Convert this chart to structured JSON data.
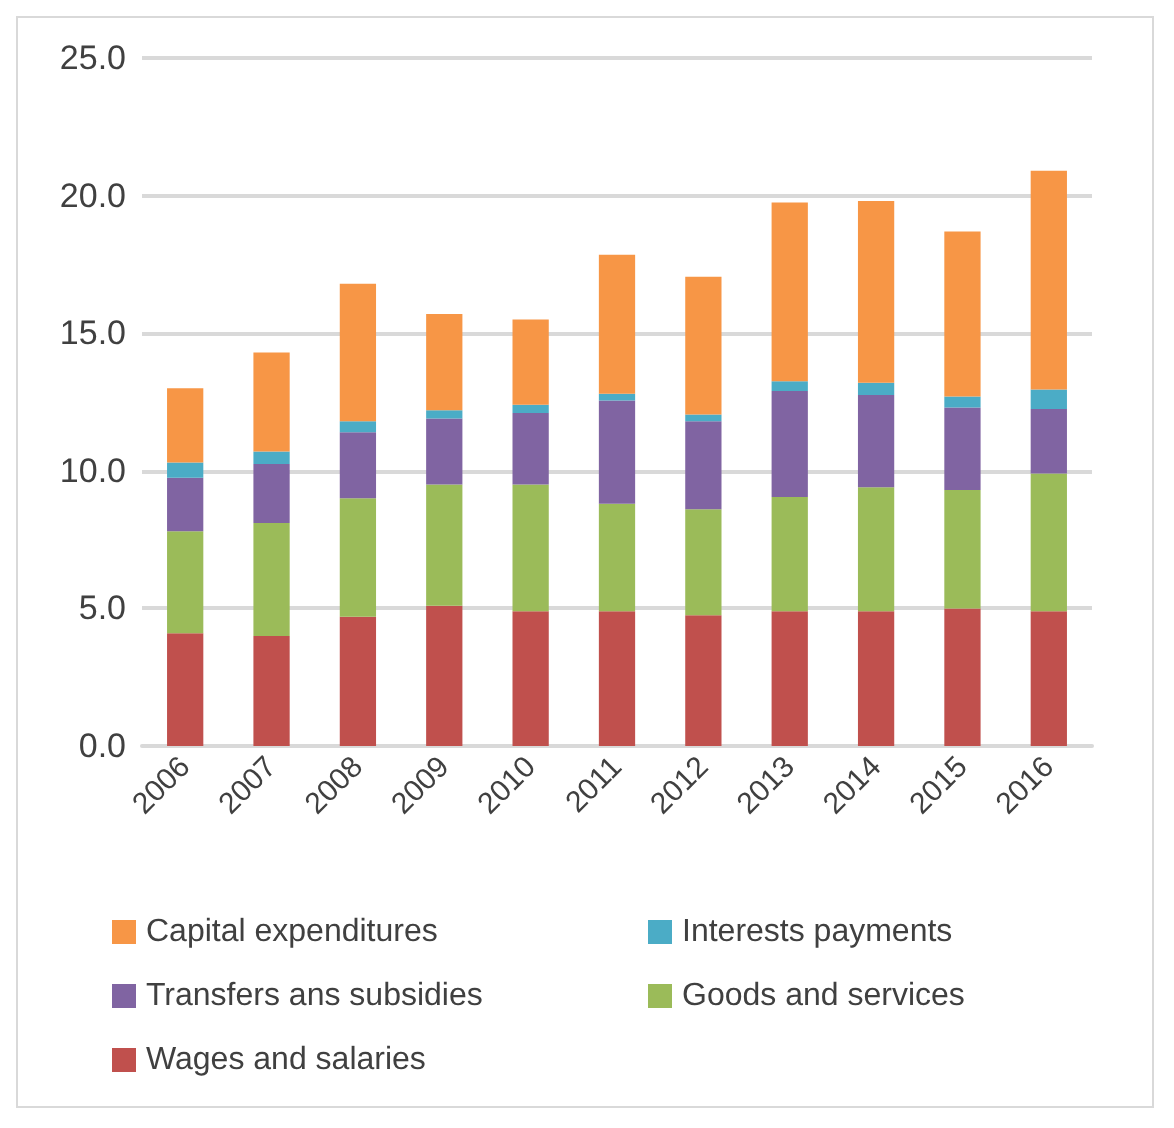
{
  "chart_data": {
    "type": "bar",
    "stacked": true,
    "categories": [
      "2006",
      "2007",
      "2008",
      "2009",
      "2010",
      "2011",
      "2012",
      "2013",
      "2014",
      "2015",
      "2016"
    ],
    "series": [
      {
        "name": "Wages and salaries",
        "color": "#c0504d",
        "values": [
          4.1,
          4.0,
          4.7,
          5.1,
          4.9,
          4.9,
          4.75,
          4.9,
          4.9,
          5.0,
          4.9
        ]
      },
      {
        "name": "Goods and services",
        "color": "#9bbb59",
        "values": [
          3.7,
          4.1,
          4.3,
          4.4,
          4.6,
          3.9,
          3.85,
          4.15,
          4.5,
          4.3,
          5.0
        ]
      },
      {
        "name": "Transfers ans subsidies",
        "color": "#8064a2",
        "values": [
          1.95,
          2.15,
          2.4,
          2.4,
          2.6,
          3.75,
          3.2,
          3.85,
          3.35,
          3.0,
          2.35
        ]
      },
      {
        "name": "Interests payments",
        "color": "#4bacc6",
        "values": [
          0.55,
          0.45,
          0.4,
          0.3,
          0.3,
          0.25,
          0.25,
          0.35,
          0.45,
          0.4,
          0.7
        ]
      },
      {
        "name": "Capital expenditures",
        "color": "#f79646",
        "values": [
          2.7,
          3.6,
          5.0,
          3.5,
          3.1,
          5.05,
          5.0,
          6.5,
          6.6,
          6.0,
          7.95
        ]
      }
    ],
    "ylim": [
      0,
      25
    ],
    "yticks": [
      {
        "value": 0,
        "label": "0.0"
      },
      {
        "value": 5,
        "label": "5.0"
      },
      {
        "value": 10,
        "label": "10.0"
      },
      {
        "value": 15,
        "label": "15.0"
      },
      {
        "value": 20,
        "label": "20.0"
      },
      {
        "value": 25,
        "label": "25.0"
      }
    ],
    "grid": "y",
    "legend": "bottom"
  }
}
